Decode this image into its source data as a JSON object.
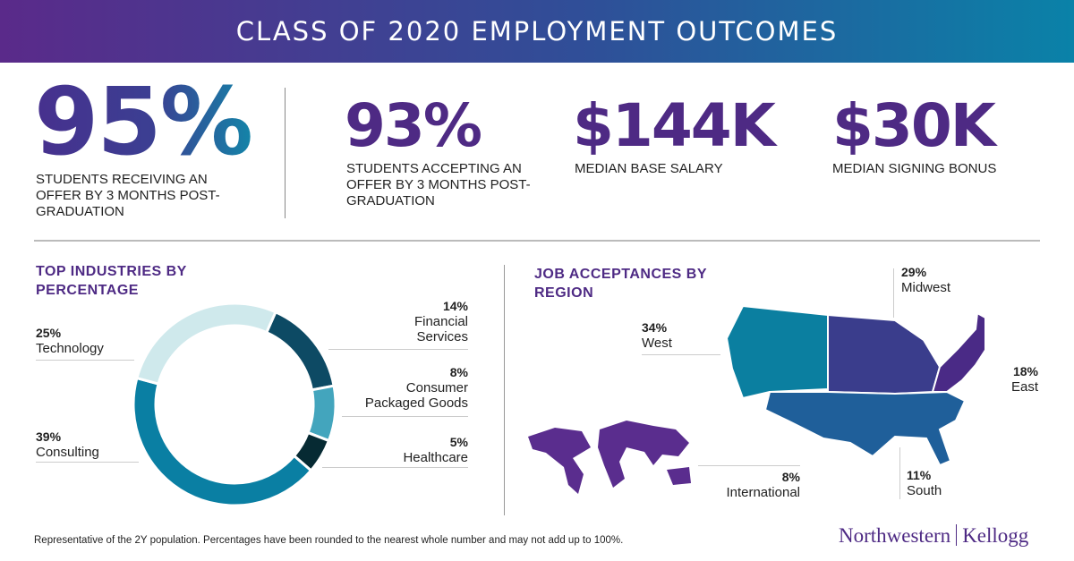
{
  "title": "CLASS OF 2020 EMPLOYMENT OUTCOMES",
  "stats": [
    {
      "value": "95%",
      "caption": "STUDENTS RECEIVING AN OFFER BY 3 MONTHS POST-GRADUATION"
    },
    {
      "value": "93%",
      "caption": "STUDENTS ACCEPTING AN OFFER BY 3 MONTHS POST-GRADUATION"
    },
    {
      "value": "$144K",
      "caption": "MEDIAN BASE SALARY"
    },
    {
      "value": "$30K",
      "caption": "MEDIAN SIGNING BONUS"
    }
  ],
  "chart_data": [
    {
      "type": "pie",
      "donut": true,
      "title": "TOP INDUSTRIES BY PERCENTAGE",
      "categories": [
        "Financial Services",
        "Consumer Packaged Goods",
        "Healthcare",
        "Consulting",
        "Technology"
      ],
      "values": [
        14,
        8,
        5,
        39,
        25
      ],
      "labels": [
        "14%",
        "8%",
        "5%",
        "39%",
        "25%"
      ],
      "colors": [
        "#0d4a64",
        "#43a5bd",
        "#062a33",
        "#0a7fa3",
        "#cfe9ec"
      ]
    },
    {
      "type": "map",
      "title": "JOB ACCEPTANCES BY REGION",
      "categories": [
        "West",
        "Midwest",
        "East",
        "South",
        "International"
      ],
      "values": [
        34,
        29,
        18,
        11,
        8
      ],
      "labels": [
        "34%",
        "29%",
        "18%",
        "11%",
        "8%"
      ],
      "colors": [
        "#0b7fa0",
        "#3a3d8c",
        "#4a2a86",
        "#1f5f9a",
        "#5a2d8e"
      ]
    }
  ],
  "footnote": "Representative of the 2Y population. Percentages have been rounded to the nearest whole number and may not add up to 100%.",
  "logo": {
    "left": "Northwestern",
    "right": "Kellogg"
  },
  "colors": {
    "purple": "#4e2a84",
    "teal": "#0a82a8"
  }
}
